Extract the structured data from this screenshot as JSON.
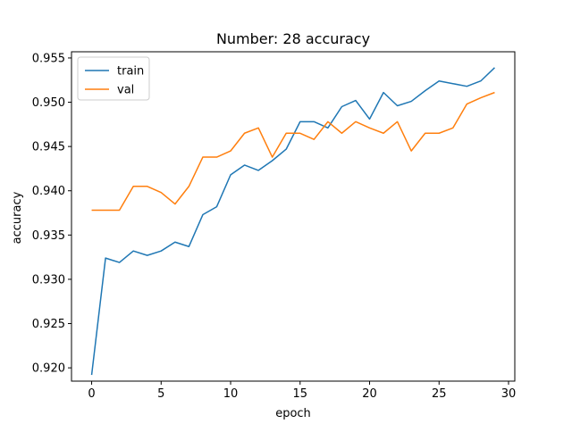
{
  "chart_data": {
    "type": "line",
    "title": "Number: 28 accuracy",
    "xlabel": "epoch",
    "ylabel": "accuracy",
    "xlim": [
      -1.45,
      30.45
    ],
    "ylim": [
      0.9185,
      0.9557
    ],
    "xticks": [
      0,
      5,
      10,
      15,
      20,
      25,
      30
    ],
    "yticks": [
      0.92,
      0.925,
      0.93,
      0.935,
      0.94,
      0.945,
      0.95,
      0.955
    ],
    "x": [
      0,
      1,
      2,
      3,
      4,
      5,
      6,
      7,
      8,
      9,
      10,
      11,
      12,
      13,
      14,
      15,
      16,
      17,
      18,
      19,
      20,
      21,
      22,
      23,
      24,
      25,
      26,
      27,
      28,
      29
    ],
    "series": [
      {
        "name": "train",
        "color": "#1f77b4",
        "values": [
          0.9192,
          0.9324,
          0.9319,
          0.9332,
          0.9327,
          0.9332,
          0.9342,
          0.9337,
          0.9373,
          0.9382,
          0.9418,
          0.9429,
          0.9423,
          0.9434,
          0.9447,
          0.9478,
          0.9478,
          0.9471,
          0.9495,
          0.9502,
          0.9481,
          0.9511,
          0.9496,
          0.9501,
          0.9513,
          0.9524,
          0.9521,
          0.9518,
          0.9524,
          0.9539
        ]
      },
      {
        "name": "val",
        "color": "#ff7f0e",
        "values": [
          0.9378,
          0.9378,
          0.9378,
          0.9405,
          0.9405,
          0.9398,
          0.9385,
          0.9405,
          0.9438,
          0.9438,
          0.9445,
          0.9465,
          0.9471,
          0.9438,
          0.9465,
          0.9465,
          0.9458,
          0.9478,
          0.9465,
          0.9478,
          0.9471,
          0.9465,
          0.9478,
          0.9445,
          0.9465,
          0.9465,
          0.9471,
          0.9498,
          0.9505,
          0.9511
        ]
      }
    ],
    "legend": "upper-left",
    "grid": false
  }
}
